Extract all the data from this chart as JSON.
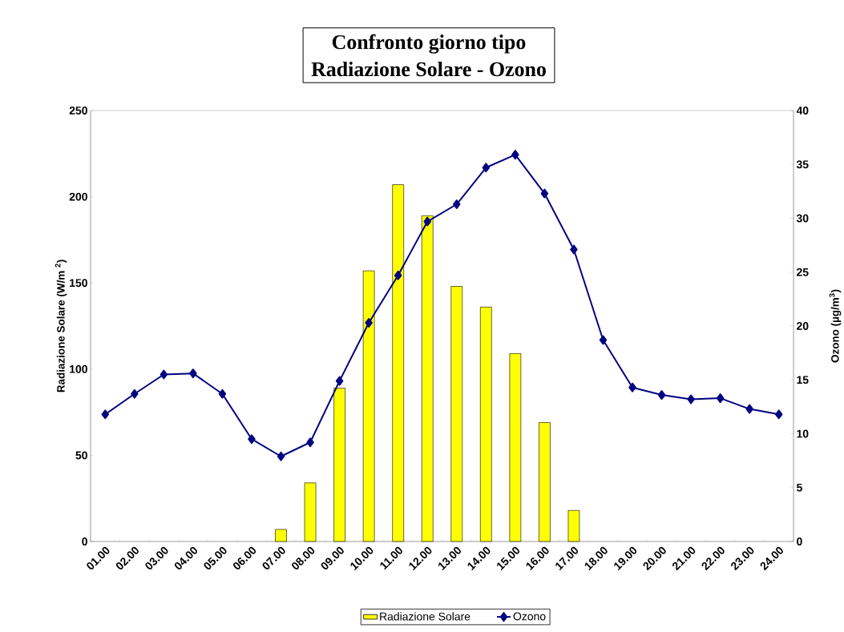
{
  "chart_data": {
    "type": "bar",
    "title": "Confronto giorno tipo",
    "subtitle": "Radiazione Solare - Ozono",
    "categories": [
      "01.00",
      "02.00",
      "03.00",
      "04.00",
      "05.00",
      "06.00",
      "07.00",
      "08.00",
      "09.00",
      "10.00",
      "11.00",
      "12.00",
      "13.00",
      "14.00",
      "15.00",
      "16.00",
      "17.00",
      "18.00",
      "19.00",
      "20.00",
      "21.00",
      "22.00",
      "23.00",
      "24.00"
    ],
    "series": [
      {
        "name": "Radiazione Solare",
        "type": "bar",
        "color": "#ffff00",
        "values": [
          null,
          null,
          null,
          null,
          null,
          null,
          7,
          34,
          89,
          157,
          207,
          189,
          148,
          136,
          109,
          69,
          18,
          null,
          null,
          null,
          null,
          null,
          null,
          null
        ]
      },
      {
        "name": "Ozono",
        "type": "line",
        "axis": "y2",
        "marker": "diamond",
        "color": "#000080",
        "values": [
          11.8,
          13.7,
          15.5,
          15.6,
          13.7,
          9.5,
          7.9,
          9.2,
          14.9,
          20.3,
          24.7,
          29.7,
          31.3,
          34.7,
          35.9,
          32.3,
          27.1,
          18.7,
          14.3,
          13.6,
          13.2,
          13.3,
          12.3,
          11.8
        ]
      }
    ],
    "ylabel": "Radiazione Solare (W/m $^{2}$)",
    "y2label": "Ozono (µg/m$^{3}$)",
    "ylim": [
      0,
      250
    ],
    "yticks": [
      0,
      50,
      100,
      150,
      200,
      250
    ],
    "y2lim": [
      0,
      40
    ],
    "y2ticks": [
      0,
      5,
      10,
      15,
      20,
      25,
      30,
      35,
      40
    ],
    "legend": "bottom"
  }
}
